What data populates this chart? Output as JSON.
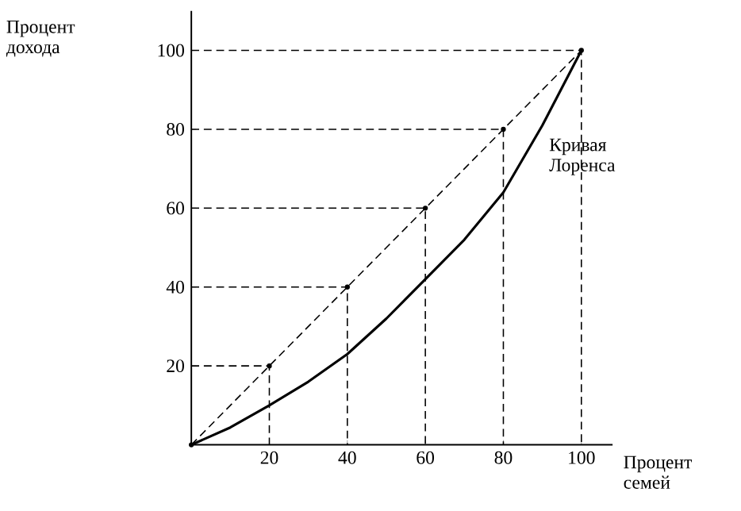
{
  "chart_data": {
    "type": "line",
    "xlabel": "Процент семей",
    "ylabel": "Процент дохода",
    "xlim": [
      0,
      108
    ],
    "ylim": [
      0,
      110
    ],
    "xticks": [
      20,
      40,
      60,
      80,
      100
    ],
    "yticks": [
      20,
      40,
      60,
      80,
      100
    ],
    "annotations": [
      "Кривая Лоренса"
    ],
    "series": [
      {
        "color": "#000000",
        "line_style": "dashed",
        "marker": "circle",
        "x": [
          0,
          20,
          40,
          60,
          80,
          100
        ],
        "values": [
          0,
          20,
          40,
          60,
          80,
          100
        ]
      },
      {
        "color": "#000000",
        "line_style": "solid",
        "marker": "none",
        "x": [
          0,
          10,
          20,
          30,
          40,
          50,
          60,
          70,
          80,
          90,
          100
        ],
        "values": [
          0,
          4.4,
          10,
          16,
          23,
          32,
          42,
          52,
          64,
          81,
          100
        ]
      },
      {
        "color": "#000000",
        "line_style": "dashed",
        "marker": "none",
        "x": [
          0,
          20,
          20
        ],
        "values": [
          20,
          20,
          0
        ]
      },
      {
        "color": "#000000",
        "line_style": "dashed",
        "marker": "none",
        "x": [
          0,
          40,
          40
        ],
        "values": [
          40,
          40,
          0
        ]
      },
      {
        "color": "#000000",
        "line_style": "dashed",
        "marker": "none",
        "x": [
          0,
          60,
          60
        ],
        "values": [
          60,
          60,
          0
        ]
      },
      {
        "color": "#000000",
        "line_style": "dashed",
        "marker": "none",
        "x": [
          0,
          80,
          80
        ],
        "values": [
          80,
          80,
          0
        ]
      },
      {
        "color": "#000000",
        "line_style": "dashed",
        "marker": "none",
        "x": [
          0,
          100,
          100
        ],
        "values": [
          100,
          100,
          0
        ]
      }
    ]
  }
}
